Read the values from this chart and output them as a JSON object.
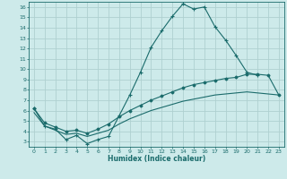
{
  "xlabel": "Humidex (Indice chaleur)",
  "bg_color": "#cdeaea",
  "grid_color": "#afd0d0",
  "line_color": "#1a6b6b",
  "xlim": [
    -0.5,
    23.5
  ],
  "ylim": [
    2.5,
    16.5
  ],
  "yticks": [
    3,
    4,
    5,
    6,
    7,
    8,
    9,
    10,
    11,
    12,
    13,
    14,
    15,
    16
  ],
  "xticks": [
    0,
    1,
    2,
    3,
    4,
    5,
    6,
    7,
    8,
    9,
    10,
    11,
    12,
    13,
    14,
    15,
    16,
    17,
    18,
    19,
    20,
    21,
    22,
    23
  ],
  "curve1_x": [
    0,
    1,
    2,
    3,
    4,
    5,
    6,
    7,
    8,
    9,
    10,
    11,
    12,
    13,
    14,
    15,
    16,
    17,
    18,
    19,
    20,
    21
  ],
  "curve1_y": [
    6.2,
    4.5,
    4.2,
    3.2,
    3.6,
    2.8,
    3.2,
    3.5,
    5.5,
    7.5,
    9.7,
    12.1,
    13.7,
    15.1,
    16.3,
    15.8,
    16.0,
    14.1,
    12.8,
    11.3,
    9.7,
    9.4
  ],
  "curve2_x": [
    0,
    1,
    2,
    3,
    4,
    5,
    6,
    7,
    8,
    9,
    10,
    11,
    12,
    13,
    14,
    15,
    16,
    17,
    18,
    19,
    20,
    21,
    22,
    23
  ],
  "curve2_y": [
    6.2,
    4.8,
    4.4,
    4.0,
    4.1,
    3.8,
    4.2,
    4.7,
    5.4,
    6.0,
    6.5,
    7.0,
    7.4,
    7.8,
    8.2,
    8.5,
    8.7,
    8.9,
    9.1,
    9.2,
    9.5,
    9.5,
    9.4,
    7.5
  ],
  "curve3_x": [
    0,
    1,
    2,
    3,
    4,
    5,
    6,
    7,
    8,
    9,
    10,
    11,
    12,
    13,
    14,
    15,
    16,
    17,
    18,
    19,
    20,
    21,
    22,
    23
  ],
  "curve3_y": [
    5.8,
    4.5,
    4.1,
    3.7,
    3.8,
    3.5,
    3.8,
    4.1,
    4.7,
    5.2,
    5.6,
    6.0,
    6.3,
    6.6,
    6.9,
    7.1,
    7.3,
    7.5,
    7.6,
    7.7,
    7.8,
    7.7,
    7.6,
    7.5
  ]
}
